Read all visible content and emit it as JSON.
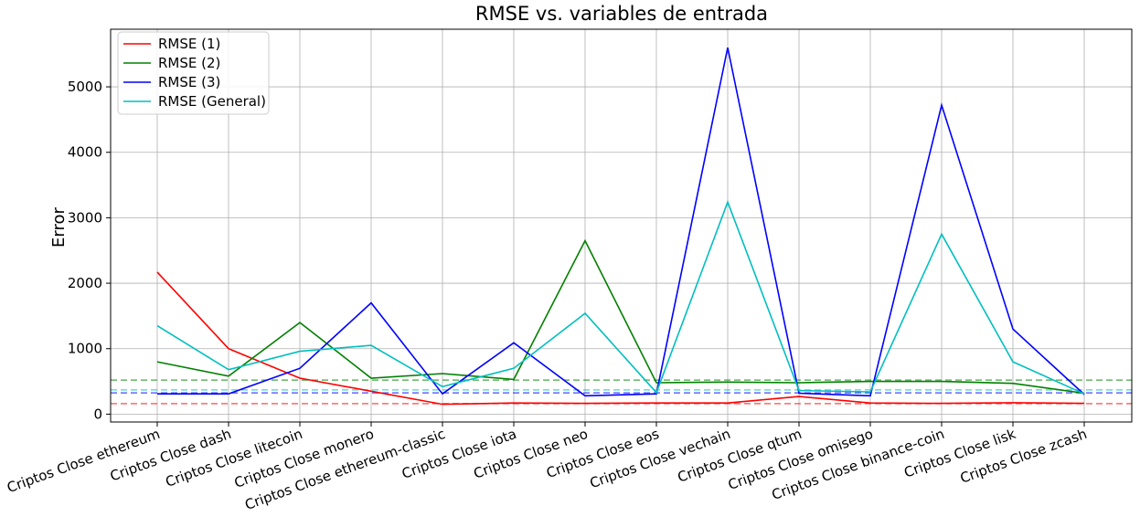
{
  "chart_data": {
    "type": "line",
    "title": "RMSE vs. variables de entrada",
    "xlabel": "",
    "ylabel": "Error",
    "categories": [
      "Criptos Close ethereum",
      "Criptos Close dash",
      "Criptos Close litecoin",
      "Criptos Close monero",
      "Criptos Close ethereum-classic",
      "Criptos Close iota",
      "Criptos Close neo",
      "Criptos Close eos",
      "Criptos Close vechain",
      "Criptos Close qtum",
      "Criptos Close omisego",
      "Criptos Close binance-coin",
      "Criptos Close lisk",
      "Criptos Close zcash"
    ],
    "ylim": [
      -120,
      5880
    ],
    "yticks": [
      0,
      1000,
      2000,
      3000,
      4000,
      5000
    ],
    "grid": true,
    "legend_position": "top-left",
    "series": [
      {
        "name": "RMSE (1)",
        "color": "#ff0000",
        "values": [
          2170,
          1000,
          550,
          350,
          150,
          170,
          165,
          170,
          170,
          270,
          170,
          165,
          175,
          165
        ]
      },
      {
        "name": "RMSE (2)",
        "color": "#008000",
        "values": [
          800,
          580,
          1400,
          550,
          620,
          530,
          2650,
          480,
          490,
          480,
          500,
          500,
          470,
          320
        ]
      },
      {
        "name": "RMSE (3)",
        "color": "#0000ff",
        "values": [
          310,
          310,
          700,
          1700,
          310,
          1090,
          280,
          310,
          5600,
          320,
          280,
          4720,
          1300,
          300
        ]
      },
      {
        "name": "RMSE (General)",
        "color": "#00bfbf",
        "values": [
          1350,
          680,
          960,
          1050,
          420,
          700,
          1540,
          330,
          3240,
          360,
          340,
          2750,
          800,
          310
        ]
      }
    ],
    "reference_lines": [
      {
        "value": 520,
        "color": "#008000"
      },
      {
        "value": 370,
        "color": "#00bfbf"
      },
      {
        "value": 325,
        "color": "#0000ff"
      },
      {
        "value": 160,
        "color": "#ff0000"
      }
    ]
  }
}
